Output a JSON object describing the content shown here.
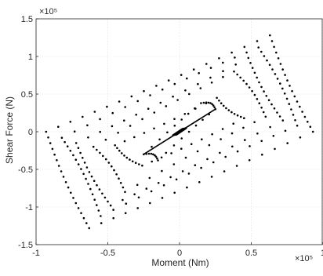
{
  "chart_data": {
    "type": "scatter",
    "title": "",
    "xlabel": "Moment (Nm)",
    "ylabel": "Shear Force (N)",
    "xlim": [
      -100000,
      100000
    ],
    "ylim": [
      -150000,
      150000
    ],
    "x_exponent_label": "×10⁵",
    "y_exponent_label": "×10⁵",
    "x_ticks": [
      -100000,
      -50000,
      0,
      50000,
      100000
    ],
    "x_tick_labels": [
      "-1",
      "-0.5",
      "0",
      "0.5",
      "1"
    ],
    "y_ticks": [
      -150000,
      -100000,
      -50000,
      0,
      50000,
      100000,
      150000
    ],
    "y_tick_labels": [
      "-1.5",
      "-1",
      "-0.5",
      "0",
      "0.5",
      "1",
      "1.5"
    ],
    "grid": true,
    "marker_color": "#000000",
    "series": [
      {
        "loop_corners": [
          [
            [
              -93000,
              0
            ],
            [
              63000,
              128000
            ],
            [
              93000,
              0
            ],
            [
              -63000,
              -128000
            ]
          ],
          [
            [
              -82000,
              -8000
            ],
            [
              55000,
              112000
            ],
            [
              82000,
              8000
            ],
            [
              -55000,
              -112000
            ]
          ],
          [
            [
              -72000,
              -15000
            ],
            [
              48000,
              98000
            ],
            [
              72000,
              15000
            ],
            [
              -48000,
              -98000
            ]
          ],
          [
            [
              -60000,
              -20000
            ],
            [
              38000,
              80000
            ],
            [
              60000,
              20000
            ],
            [
              -38000,
              -80000
            ]
          ],
          [
            [
              -45000,
              -18000
            ],
            [
              26000,
              45000
            ],
            [
              45000,
              18000
            ],
            [
              -26000,
              -45000
            ]
          ],
          [
            [
              -25000,
              -30000
            ],
            [
              15000,
              38000
            ],
            [
              25000,
              30000
            ],
            [
              -15000,
              -38000
            ]
          ]
        ],
        "inner_loop": [
          [
            -5000,
            -5000
          ],
          [
            2000,
            4000
          ],
          [
            5000,
            5000
          ],
          [
            -2000,
            -4000
          ]
        ]
      }
    ]
  }
}
